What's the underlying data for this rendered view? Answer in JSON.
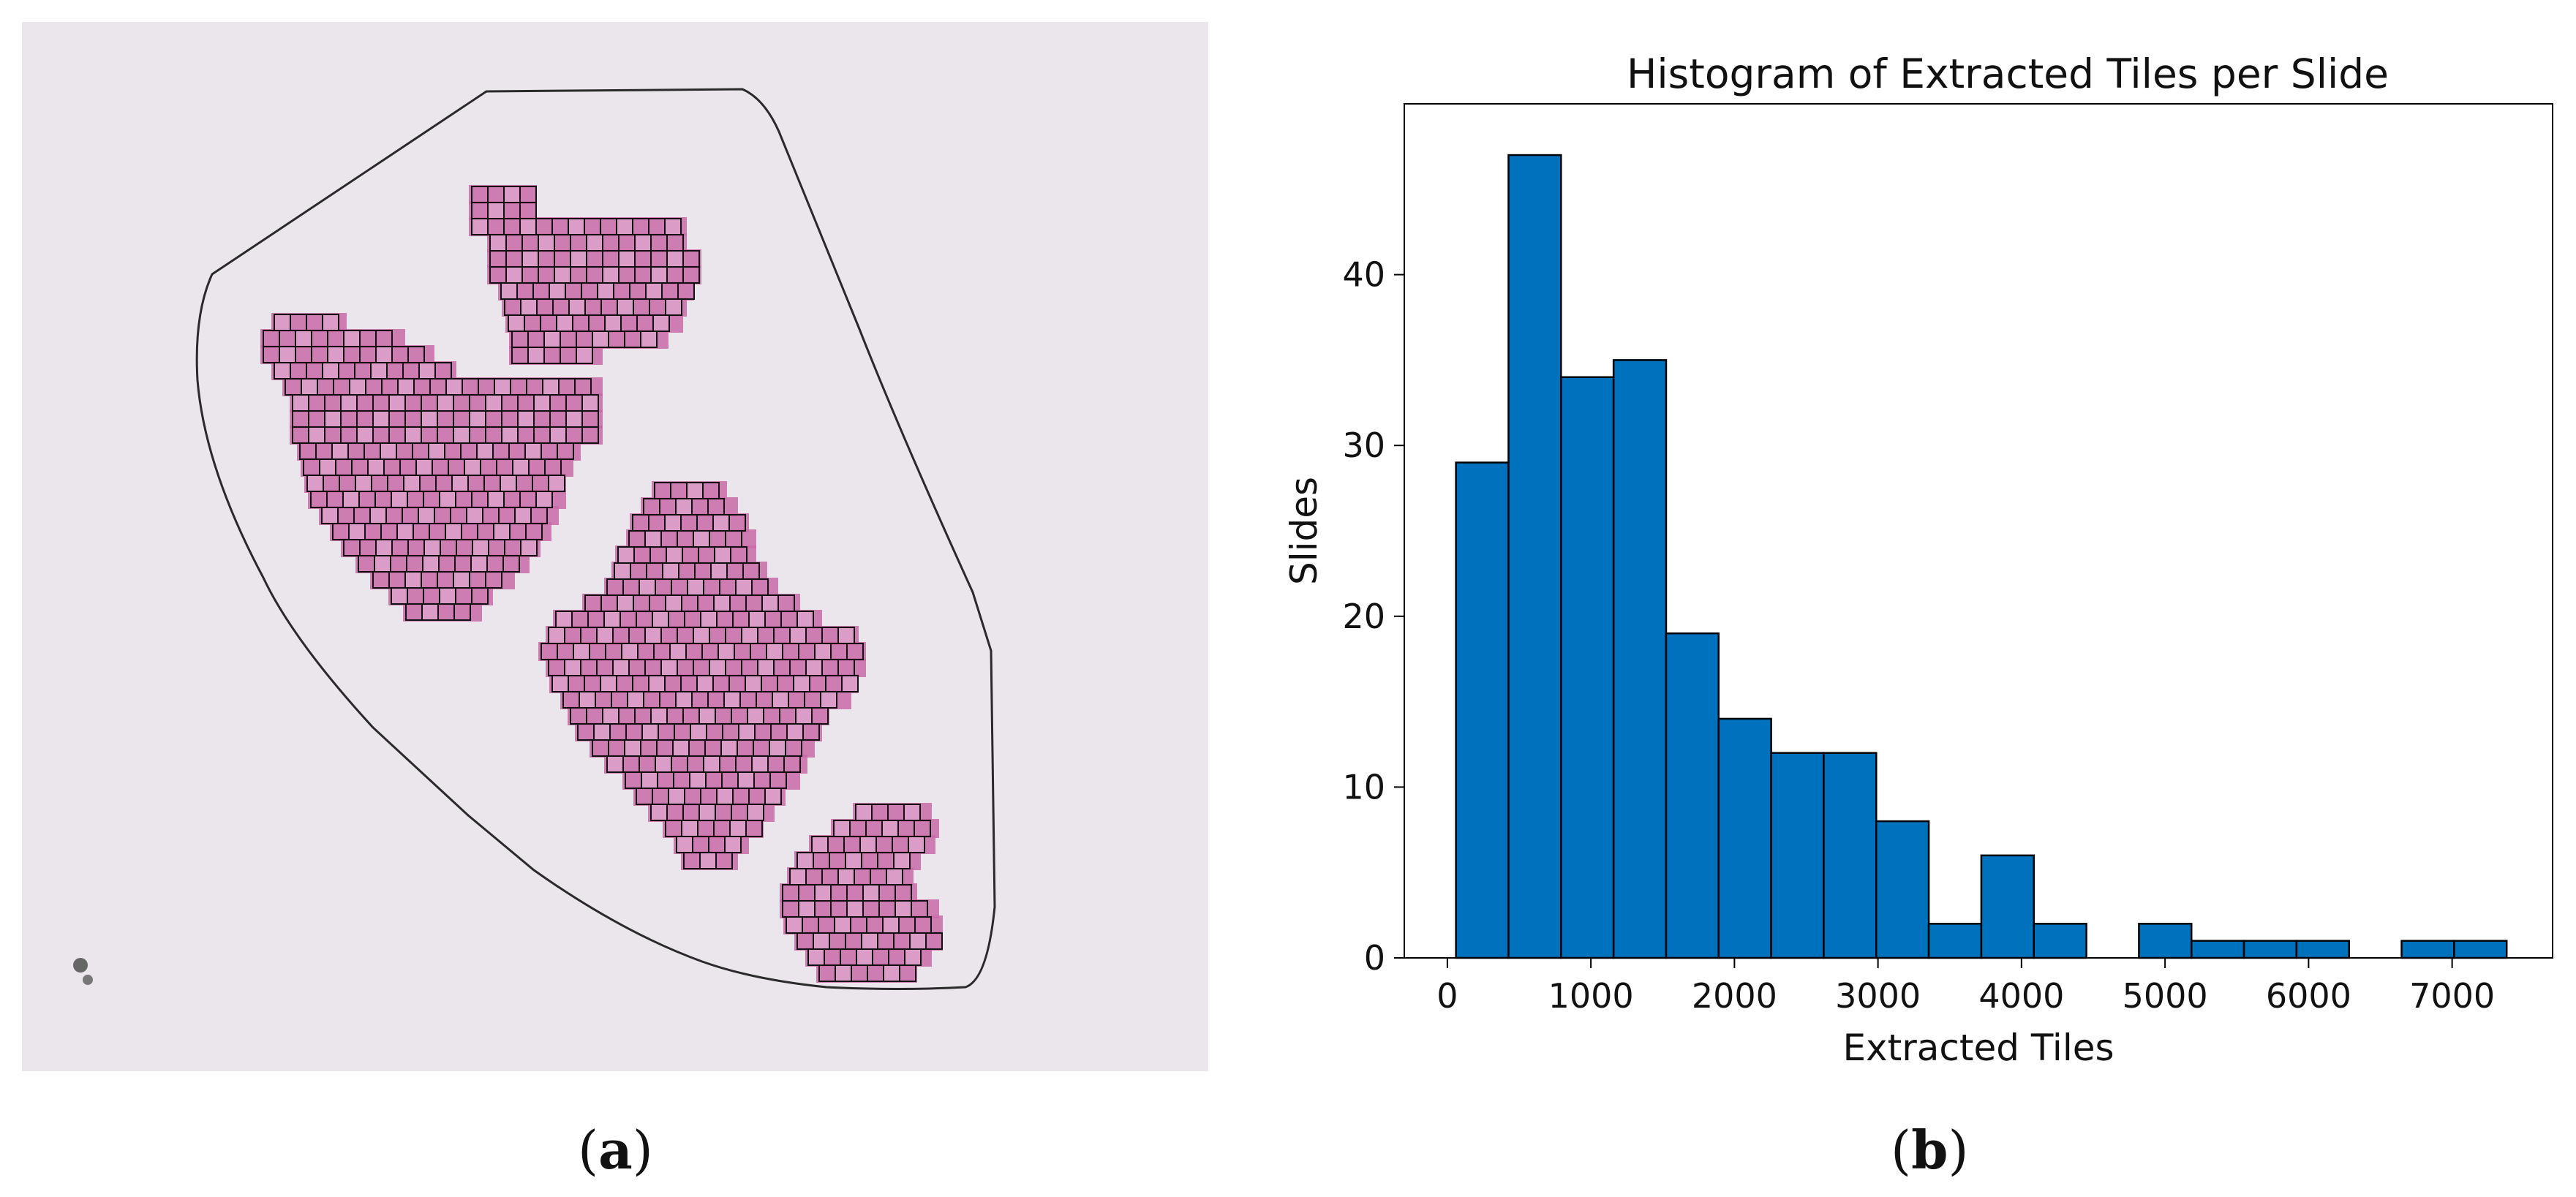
{
  "panel_a": {
    "caption_letter": "a"
  },
  "panel_b": {
    "caption_letter": "b"
  },
  "chart_data": {
    "type": "bar",
    "title": "Histogram of Extracted Tiles per Slide",
    "xlabel": "Extracted Tiles",
    "ylabel": "Slides",
    "xlim": [
      -300,
      7700
    ],
    "ylim": [
      0,
      50
    ],
    "x_ticks": [
      0,
      1000,
      2000,
      3000,
      4000,
      5000,
      6000,
      7000
    ],
    "y_ticks": [
      0,
      10,
      20,
      30,
      40
    ],
    "bin_width": 366,
    "bin_edges_start": 60,
    "values": [
      29,
      47,
      34,
      35,
      19,
      14,
      12,
      12,
      8,
      2,
      6,
      2,
      0,
      2,
      1,
      1,
      1,
      0,
      1,
      1
    ],
    "bar_color": "#0072bd",
    "edge_color": "#000000",
    "grid": false,
    "legend": "none"
  },
  "colors": {
    "slide_background": "#ebe6ec",
    "tissue": "#c96aa8",
    "tissue_light": "#dc9cc8",
    "outline": "#2a2a2a"
  }
}
